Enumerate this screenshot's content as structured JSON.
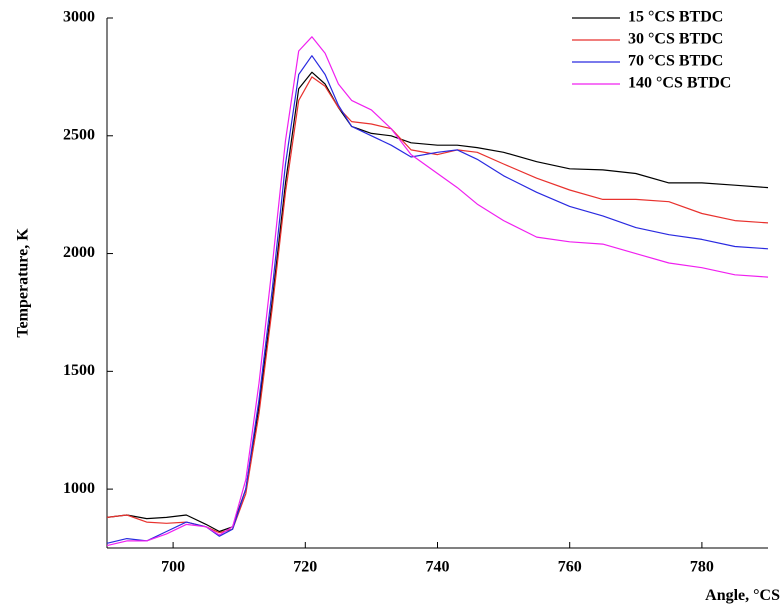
{
  "chart_data": {
    "type": "line",
    "y_label": "Temperature, K",
    "x_label": "Angle, °CS",
    "x": [
      690,
      693,
      696,
      699,
      702,
      705,
      707,
      709,
      711,
      713,
      715,
      717,
      719,
      721,
      723,
      725,
      727,
      730,
      733,
      736,
      740,
      743,
      746,
      750,
      755,
      760,
      765,
      770,
      775,
      780,
      785,
      790
    ],
    "series": [
      {
        "name": "15 °CS BTDC",
        "color": "#000000",
        "values": [
          880,
          890,
          875,
          880,
          890,
          850,
          820,
          840,
          1000,
          1350,
          1800,
          2300,
          2700,
          2770,
          2720,
          2620,
          2540,
          2510,
          2500,
          2470,
          2460,
          2460,
          2450,
          2430,
          2390,
          2360,
          2355,
          2340,
          2300,
          2300,
          2290,
          2280
        ]
      },
      {
        "name": "30 °CS BTDC",
        "color": "#e8322e",
        "values": [
          880,
          890,
          860,
          855,
          860,
          840,
          815,
          830,
          980,
          1320,
          1770,
          2260,
          2650,
          2750,
          2710,
          2620,
          2560,
          2550,
          2530,
          2440,
          2420,
          2440,
          2430,
          2380,
          2320,
          2270,
          2230,
          2230,
          2220,
          2170,
          2140,
          2130
        ]
      },
      {
        "name": "70 °CS BTDC",
        "color": "#2a2ae0",
        "values": [
          770,
          790,
          780,
          820,
          860,
          840,
          800,
          830,
          1000,
          1380,
          1850,
          2380,
          2760,
          2840,
          2760,
          2630,
          2540,
          2500,
          2460,
          2410,
          2430,
          2440,
          2400,
          2330,
          2260,
          2200,
          2160,
          2110,
          2080,
          2060,
          2030,
          2020
        ]
      },
      {
        "name": "140 °CS BTDC",
        "color": "#f020f0",
        "values": [
          760,
          780,
          780,
          810,
          850,
          840,
          805,
          840,
          1040,
          1450,
          1950,
          2480,
          2860,
          2920,
          2850,
          2720,
          2650,
          2610,
          2530,
          2420,
          2340,
          2280,
          2210,
          2140,
          2070,
          2050,
          2040,
          2000,
          1960,
          1940,
          1910,
          1900
        ]
      }
    ],
    "xlim": [
      690,
      790
    ],
    "xticks": [
      700,
      720,
      740,
      760,
      780
    ],
    "ylim": [
      750,
      3000
    ],
    "yticks": [
      1000,
      1500,
      2000,
      2500,
      3000
    ],
    "legend": "upper right"
  }
}
